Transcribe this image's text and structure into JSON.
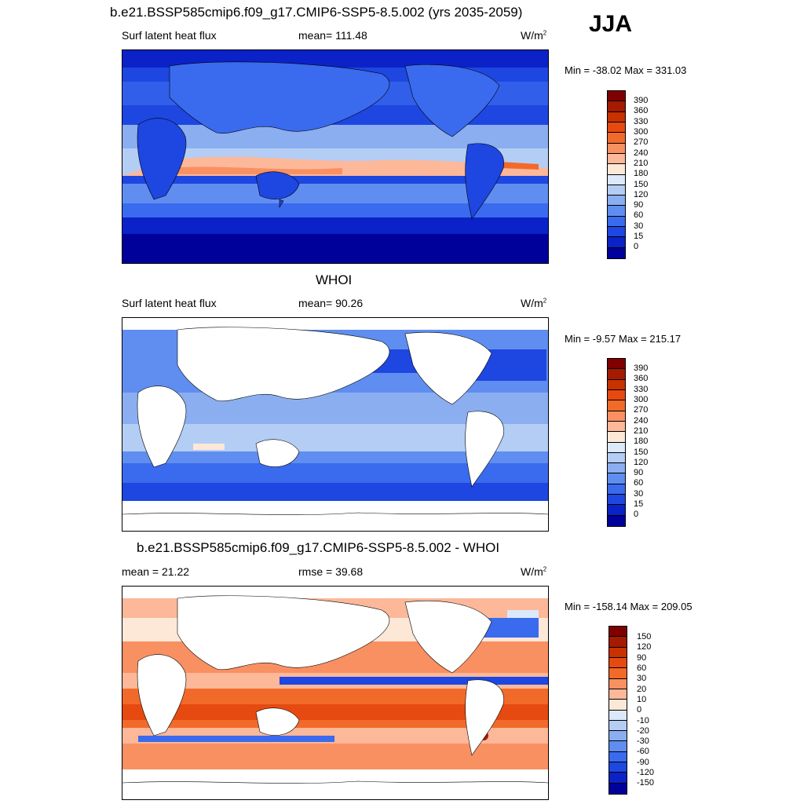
{
  "season": "JJA",
  "panels": [
    {
      "title": "b.e21.BSSP585cmip6.f09_g17.CMIP6-SSP5-8.5.002 (yrs 2035-2059)",
      "left": "Surf latent heat flux",
      "center": "mean= 111.48",
      "units": "W/m",
      "units_sup": "2",
      "minmax": "Min = -38.02 Max = 331.03",
      "levels": [
        "390",
        "360",
        "330",
        "300",
        "270",
        "240",
        "210",
        "180",
        "150",
        "120",
        "90",
        "60",
        "30",
        "15",
        "0"
      ]
    },
    {
      "title": "WHOI",
      "left": "Surf latent heat flux",
      "center": "mean=  90.26",
      "units": "W/m",
      "units_sup": "2",
      "minmax": "Min =  -9.57 Max = 215.17",
      "levels": [
        "390",
        "360",
        "330",
        "300",
        "270",
        "240",
        "210",
        "180",
        "150",
        "120",
        "90",
        "60",
        "30",
        "15",
        "0"
      ]
    },
    {
      "title": "b.e21.BSSP585cmip6.f09_g17.CMIP6-SSP5-8.5.002 - WHOI",
      "left": "mean =  21.22",
      "center": "rmse =  39.68",
      "units": "W/m",
      "units_sup": "2",
      "minmax": "Min = -158.14 Max = 209.05",
      "levels": [
        "150",
        "120",
        "90",
        "60",
        "30",
        "20",
        "10",
        "0",
        "-10",
        "-20",
        "-30",
        "-60",
        "-90",
        "-120",
        "-150"
      ]
    }
  ],
  "colors": {
    "seq": [
      "#7f0000",
      "#a51a00",
      "#c83200",
      "#e64a10",
      "#f26a2a",
      "#f99062",
      "#fcb899",
      "#fde8d8",
      "#dce9fa",
      "#b4cdf5",
      "#8aaef0",
      "#5f8ef0",
      "#3a6aee",
      "#1e46e0",
      "#0a22c8",
      "#00009a"
    ],
    "div": [
      "#7f0000",
      "#a51a00",
      "#c83200",
      "#e64a10",
      "#f26a2a",
      "#f99062",
      "#fcb899",
      "#fde8d8",
      "#dce9fa",
      "#b4cdf5",
      "#8aaef0",
      "#5f8ef0",
      "#3a6aee",
      "#1e46e0",
      "#0a22c8",
      "#00009a"
    ]
  }
}
